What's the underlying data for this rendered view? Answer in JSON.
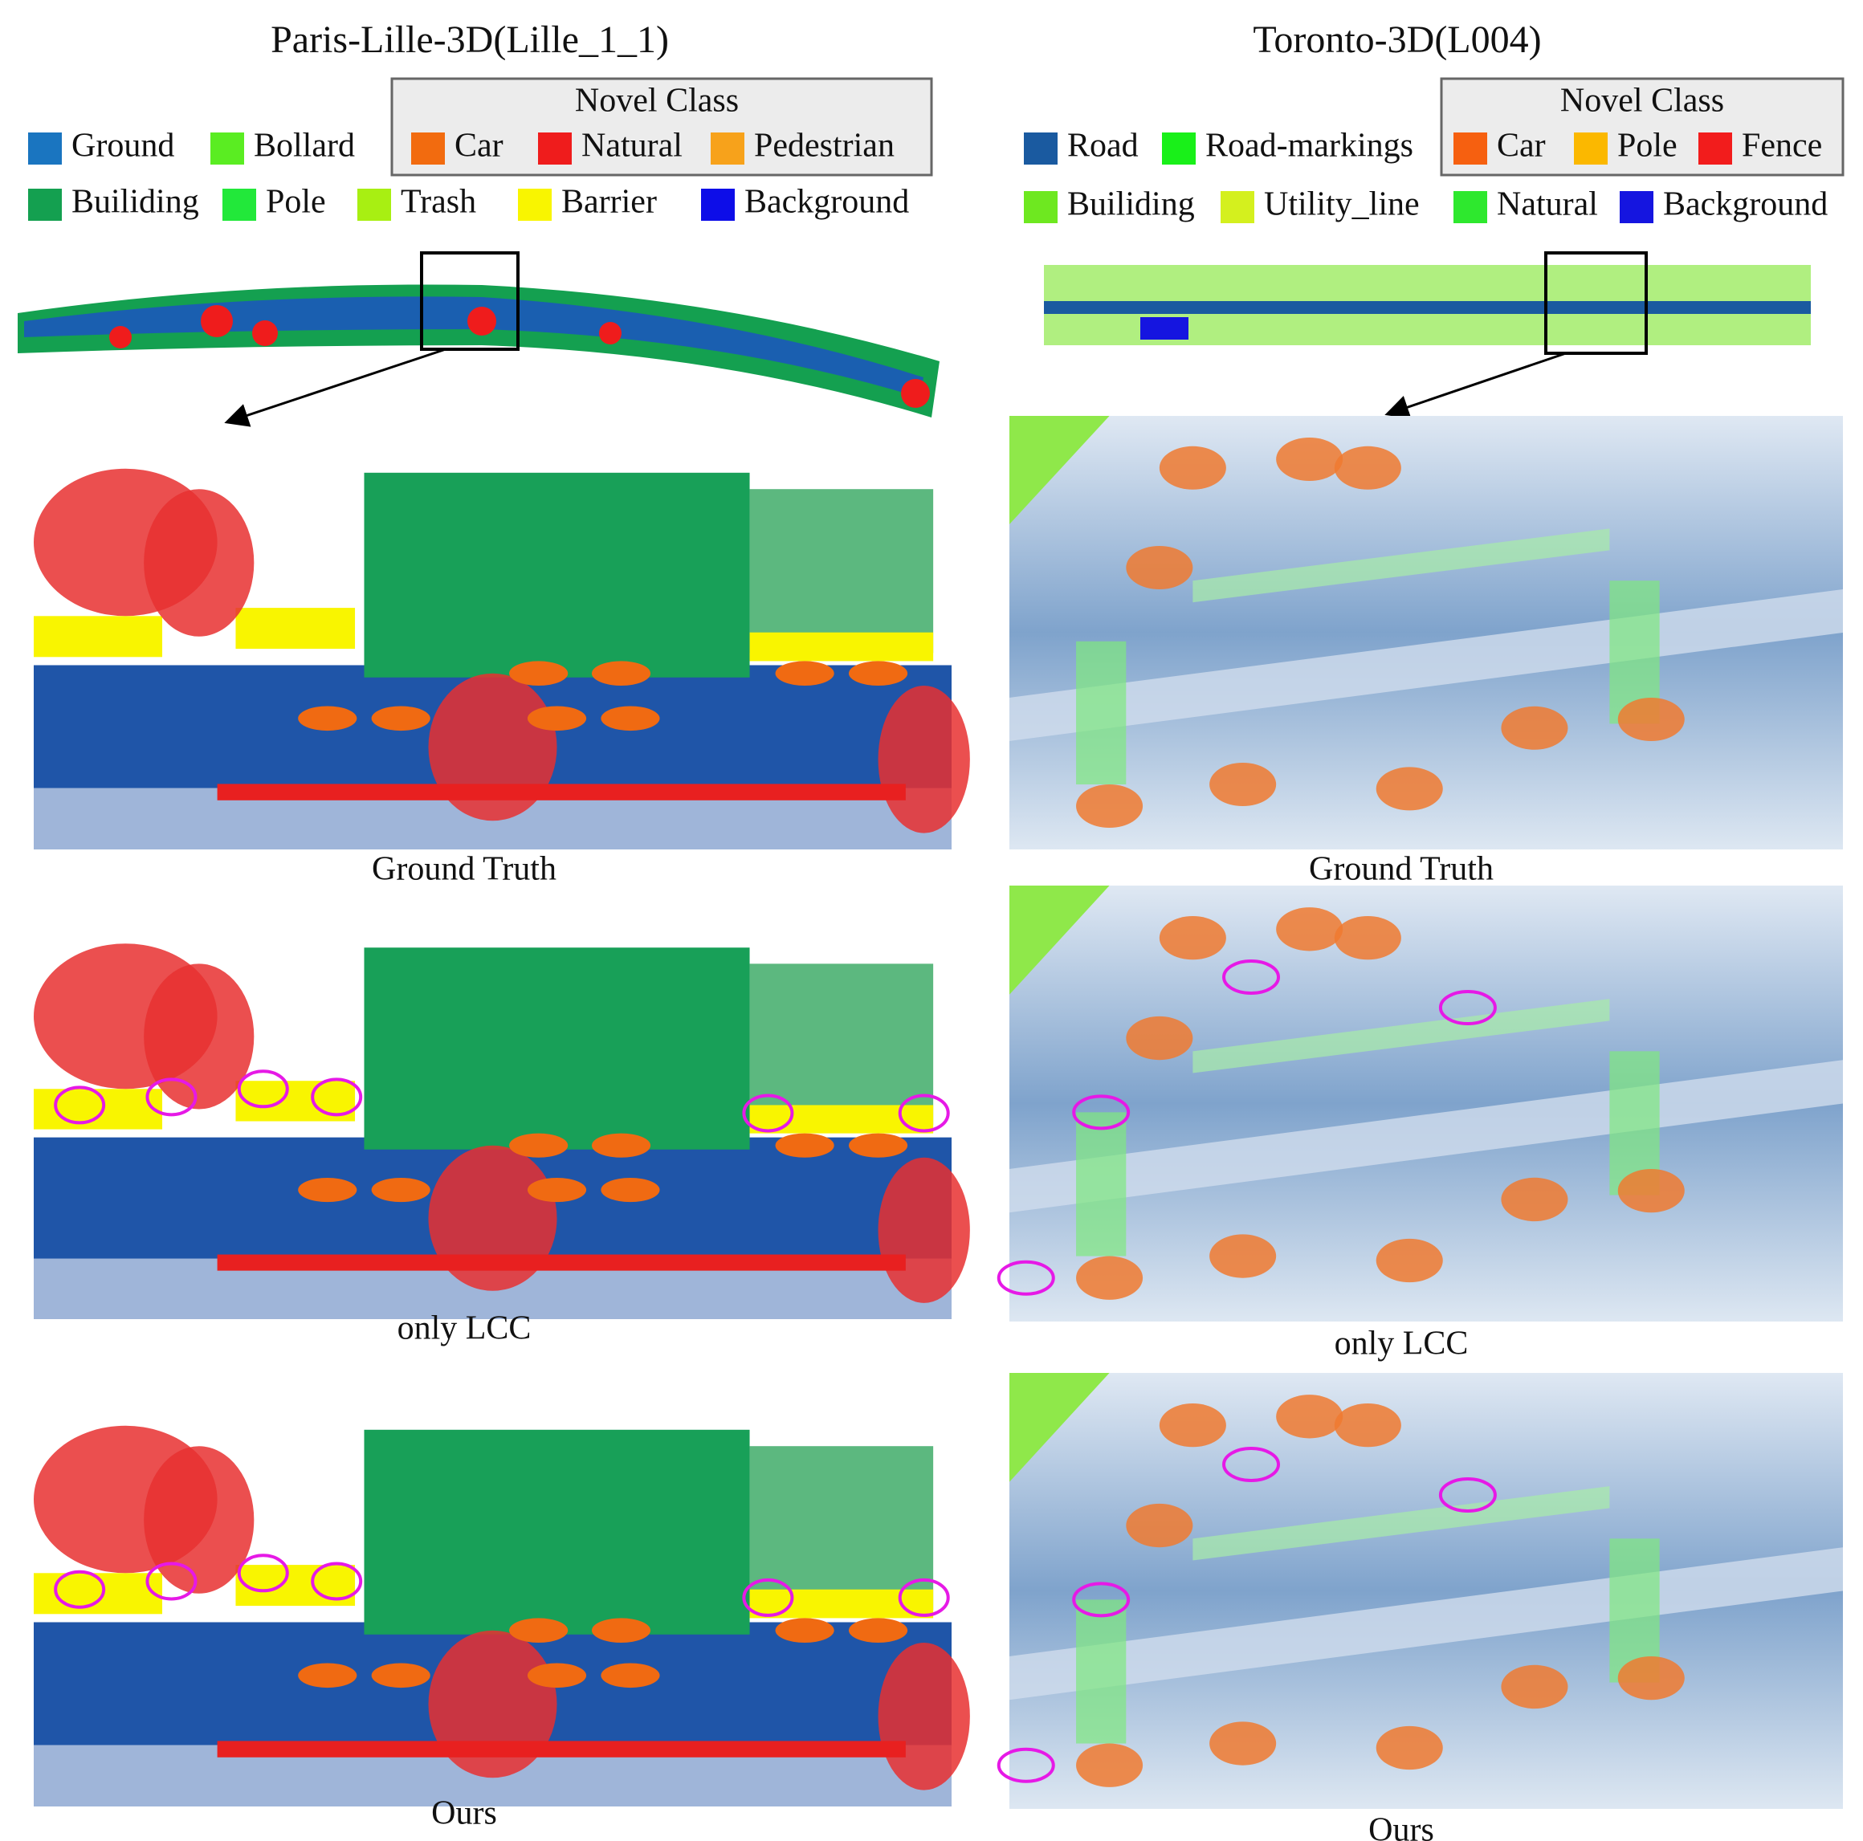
{
  "left": {
    "title": "Paris-Lille-3D(Lille_1_1)",
    "legend": [
      [
        {
          "label": "Ground",
          "color": "#1a75c0"
        },
        {
          "label": "Bollard",
          "color": "#5aed22"
        }
      ],
      [
        {
          "label": "Builiding",
          "color": "#14a050"
        },
        {
          "label": "Pole",
          "color": "#22e83a"
        },
        {
          "label": "Trash",
          "color": "#a8ef12"
        },
        {
          "label": "Barrier",
          "color": "#f9f500"
        },
        {
          "label": "Background",
          "color": "#0d0de8"
        }
      ]
    ],
    "novel_class": {
      "title": "Novel  Class",
      "items": [
        {
          "label": "Car",
          "color": "#f26b0f"
        },
        {
          "label": "Natural",
          "color": "#ef1c1c"
        },
        {
          "label": "Pedestrian",
          "color": "#f7a21b"
        }
      ]
    },
    "captions": [
      "Ground Truth",
      "only LCC",
      "Ours"
    ]
  },
  "right": {
    "title": "Toronto-3D(L004)",
    "legend": [
      [
        {
          "label": "Road",
          "color": "#1a5aa0"
        },
        {
          "label": "Road-markings",
          "color": "#19f019"
        }
      ],
      [
        {
          "label": "Builiding",
          "color": "#6ee820"
        },
        {
          "label": "Utility_line",
          "color": "#d4f01e"
        },
        {
          "label": "Natural",
          "color": "#2ee82e"
        },
        {
          "label": "Background",
          "color": "#1515e0"
        }
      ]
    ],
    "novel_class": {
      "title": "Novel  Class",
      "items": [
        {
          "label": "Car",
          "color": "#f66010"
        },
        {
          "label": "Pole",
          "color": "#fbb800"
        },
        {
          "label": "Fence",
          "color": "#f21c1c"
        }
      ]
    },
    "captions": [
      "Ground Truth",
      "only LCC",
      "Ours"
    ]
  }
}
